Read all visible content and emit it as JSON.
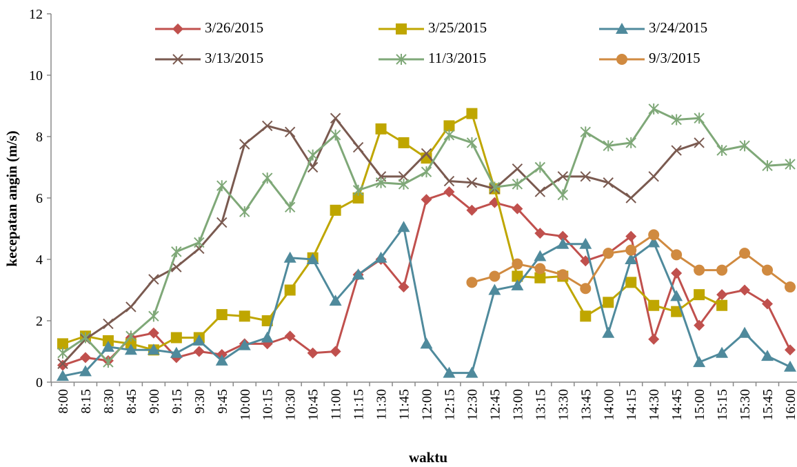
{
  "chart_data": {
    "type": "line",
    "x_label": "waktu",
    "y_label": "kecepatan angin (m/s)",
    "categories": [
      "8:00",
      "8:15",
      "8:30",
      "8:45",
      "9:00",
      "9:15",
      "9:30",
      "9:45",
      "10:00",
      "10:15",
      "10:30",
      "10:45",
      "11:00",
      "11:15",
      "11:30",
      "11:45",
      "12:00",
      "12:15",
      "12:30",
      "12:45",
      "13:00",
      "13:15",
      "13:30",
      "13:45",
      "14:00",
      "14:15",
      "14:30",
      "14:45",
      "15:00",
      "15:15",
      "15:30",
      "15:45",
      "16:00"
    ],
    "ylim": [
      0,
      12
    ],
    "yticks": [
      0,
      2,
      4,
      6,
      8,
      10,
      12
    ],
    "grid": false,
    "legend": "top",
    "series": [
      {
        "name": "3/26/2015",
        "color": "#c0504d",
        "marker": "diamond",
        "values": [
          0.55,
          0.8,
          0.7,
          1.45,
          1.6,
          0.8,
          1.0,
          0.9,
          1.25,
          1.25,
          1.5,
          0.95,
          1.0,
          3.5,
          4.0,
          3.1,
          5.95,
          6.2,
          5.6,
          5.85,
          5.65,
          4.85,
          4.75,
          3.95,
          4.2,
          4.75,
          1.4,
          3.55,
          1.85,
          2.85,
          3.0,
          2.55,
          1.05
        ]
      },
      {
        "name": "3/25/2015",
        "color": "#bfa600",
        "marker": "square",
        "values": [
          1.25,
          1.5,
          1.35,
          1.25,
          1.05,
          1.45,
          1.45,
          2.2,
          2.15,
          2.0,
          3.0,
          4.05,
          5.6,
          6.0,
          8.25,
          7.8,
          7.3,
          8.35,
          8.75,
          6.3,
          3.45,
          3.4,
          3.45,
          2.15,
          2.6,
          3.25,
          2.5,
          2.3,
          2.85,
          2.5,
          null,
          null,
          null
        ]
      },
      {
        "name": "3/24/2015",
        "color": "#4f8a9c",
        "marker": "triangle",
        "values": [
          0.2,
          0.35,
          1.15,
          1.05,
          1.05,
          0.95,
          1.35,
          0.7,
          1.2,
          1.45,
          4.05,
          4.0,
          2.65,
          3.5,
          4.05,
          5.05,
          1.25,
          0.3,
          0.3,
          3.0,
          3.15,
          4.1,
          4.5,
          4.5,
          1.6,
          4.0,
          4.55,
          2.8,
          0.65,
          0.95,
          1.6,
          0.85,
          0.5
        ]
      },
      {
        "name": "3/13/2015",
        "color": "#7a5a50",
        "marker": "x",
        "values": [
          0.6,
          1.4,
          1.9,
          2.45,
          3.35,
          3.75,
          4.35,
          5.2,
          7.75,
          8.35,
          8.15,
          7.0,
          8.6,
          7.65,
          6.7,
          6.7,
          7.45,
          6.55,
          6.5,
          6.3,
          6.95,
          6.2,
          6.7,
          6.7,
          6.5,
          6.0,
          6.7,
          7.55,
          7.8,
          null,
          null,
          null,
          null
        ]
      },
      {
        "name": "11/3/2015",
        "color": "#7fa878",
        "marker": "star",
        "values": [
          0.95,
          1.45,
          0.65,
          1.5,
          2.15,
          4.25,
          4.55,
          6.4,
          5.55,
          6.65,
          5.7,
          7.4,
          8.05,
          6.25,
          6.5,
          6.45,
          6.85,
          8.05,
          7.8,
          6.35,
          6.45,
          7.0,
          6.1,
          8.15,
          7.7,
          7.8,
          8.9,
          8.55,
          8.6,
          7.55,
          7.7,
          7.05,
          7.1
        ]
      },
      {
        "name": "9/3/2015",
        "color": "#d08a40",
        "marker": "circle",
        "values": [
          null,
          null,
          null,
          null,
          null,
          null,
          null,
          null,
          null,
          null,
          null,
          null,
          null,
          null,
          null,
          null,
          null,
          null,
          3.25,
          3.45,
          3.85,
          3.7,
          3.5,
          3.05,
          4.2,
          4.3,
          4.8,
          4.15,
          3.65,
          3.65,
          4.2,
          3.65,
          3.1
        ]
      }
    ]
  }
}
